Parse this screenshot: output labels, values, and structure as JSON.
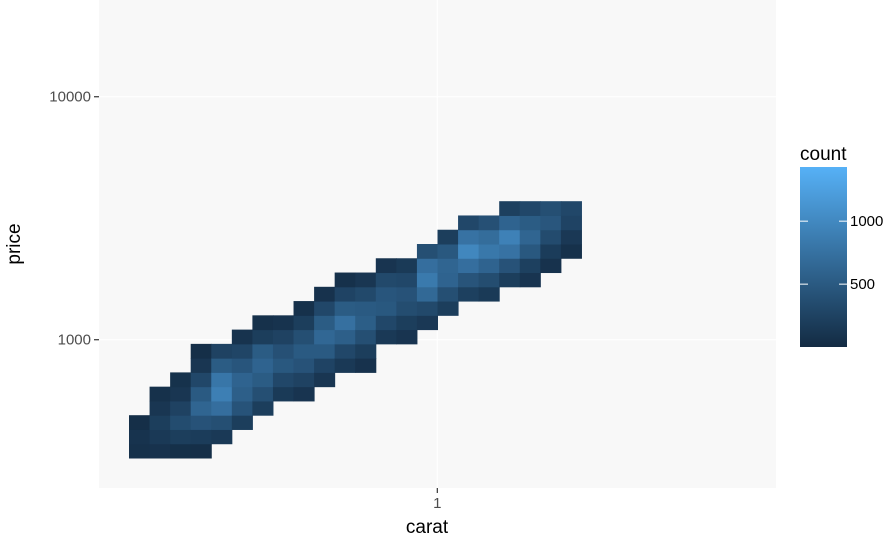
{
  "chart_data": {
    "type": "heatmap",
    "xlabel": "carat",
    "ylabel": "price",
    "x_scale": "log10",
    "y_scale": "log10",
    "x_ticks": [
      {
        "value": 1,
        "label": "1"
      }
    ],
    "y_ticks": [
      {
        "value": 1000,
        "label": "1000"
      },
      {
        "value": 10000,
        "label": "10000"
      }
    ],
    "xlim": [
      0.2,
      5.01
    ],
    "ylim": [
      326,
      18823
    ],
    "grid": true,
    "legend": {
      "title": "count",
      "position": "right",
      "range": [
        1,
        1430
      ],
      "ticks": [
        {
          "value": 500,
          "label": "500"
        },
        {
          "value": 1000,
          "label": "1000"
        }
      ],
      "colors": {
        "low": "#132B43",
        "high": "#56B1F7"
      }
    },
    "bins": {
      "x_bins": 30,
      "y_bins": 30,
      "description": "2D bin counts of diamonds carat vs price (log-log), cells listed as [x_index, y_index, count]",
      "cells": [
        [
          0,
          0,
          60
        ],
        [
          0,
          1,
          90
        ],
        [
          0,
          2,
          40
        ],
        [
          1,
          0,
          80
        ],
        [
          1,
          1,
          150
        ],
        [
          1,
          2,
          200
        ],
        [
          1,
          3,
          120
        ],
        [
          1,
          4,
          60
        ],
        [
          2,
          0,
          50
        ],
        [
          2,
          1,
          200
        ],
        [
          2,
          2,
          350
        ],
        [
          2,
          3,
          250
        ],
        [
          2,
          4,
          120
        ],
        [
          2,
          5,
          70
        ],
        [
          3,
          0,
          40
        ],
        [
          3,
          1,
          180
        ],
        [
          3,
          2,
          420
        ],
        [
          3,
          3,
          620
        ],
        [
          3,
          4,
          500
        ],
        [
          3,
          5,
          300
        ],
        [
          3,
          6,
          120
        ],
        [
          3,
          7,
          40
        ],
        [
          4,
          1,
          150
        ],
        [
          4,
          2,
          380
        ],
        [
          4,
          3,
          720
        ],
        [
          4,
          4,
          900
        ],
        [
          4,
          5,
          800
        ],
        [
          4,
          6,
          520
        ],
        [
          4,
          7,
          250
        ],
        [
          5,
          2,
          200
        ],
        [
          5,
          3,
          430
        ],
        [
          5,
          4,
          560
        ],
        [
          5,
          5,
          600
        ],
        [
          5,
          6,
          450
        ],
        [
          5,
          7,
          280
        ],
        [
          5,
          8,
          90
        ],
        [
          6,
          3,
          200
        ],
        [
          6,
          4,
          380
        ],
        [
          6,
          5,
          520
        ],
        [
          6,
          6,
          600
        ],
        [
          6,
          7,
          520
        ],
        [
          6,
          8,
          200
        ],
        [
          6,
          9,
          60
        ],
        [
          7,
          4,
          160
        ],
        [
          7,
          5,
          300
        ],
        [
          7,
          6,
          480
        ],
        [
          7,
          7,
          400
        ],
        [
          7,
          8,
          250
        ],
        [
          7,
          9,
          90
        ],
        [
          8,
          4,
          100
        ],
        [
          8,
          5,
          250
        ],
        [
          8,
          6,
          420
        ],
        [
          8,
          7,
          500
        ],
        [
          8,
          8,
          380
        ],
        [
          8,
          9,
          200
        ],
        [
          8,
          10,
          60
        ],
        [
          9,
          5,
          120
        ],
        [
          9,
          6,
          260
        ],
        [
          9,
          7,
          500
        ],
        [
          9,
          8,
          640
        ],
        [
          9,
          9,
          520
        ],
        [
          9,
          10,
          300
        ],
        [
          9,
          11,
          80
        ],
        [
          10,
          6,
          150
        ],
        [
          10,
          7,
          300
        ],
        [
          10,
          8,
          560
        ],
        [
          10,
          9,
          740
        ],
        [
          10,
          10,
          520
        ],
        [
          10,
          11,
          260
        ],
        [
          10,
          12,
          60
        ],
        [
          11,
          6,
          80
        ],
        [
          11,
          7,
          200
        ],
        [
          11,
          8,
          380
        ],
        [
          11,
          9,
          540
        ],
        [
          11,
          10,
          500
        ],
        [
          11,
          11,
          320
        ],
        [
          11,
          12,
          120
        ],
        [
          12,
          8,
          150
        ],
        [
          12,
          9,
          300
        ],
        [
          12,
          10,
          480
        ],
        [
          12,
          11,
          450
        ],
        [
          12,
          12,
          320
        ],
        [
          12,
          13,
          100
        ],
        [
          13,
          8,
          100
        ],
        [
          13,
          9,
          200
        ],
        [
          13,
          10,
          360
        ],
        [
          13,
          11,
          420
        ],
        [
          13,
          12,
          300
        ],
        [
          13,
          13,
          160
        ],
        [
          14,
          9,
          140
        ],
        [
          14,
          10,
          320
        ],
        [
          14,
          11,
          660
        ],
        [
          14,
          12,
          840
        ],
        [
          14,
          13,
          720
        ],
        [
          14,
          14,
          380
        ],
        [
          15,
          10,
          200
        ],
        [
          15,
          11,
          380
        ],
        [
          15,
          12,
          600
        ],
        [
          15,
          13,
          620
        ],
        [
          15,
          14,
          480
        ],
        [
          15,
          15,
          200
        ],
        [
          16,
          11,
          220
        ],
        [
          16,
          12,
          440
        ],
        [
          16,
          13,
          720
        ],
        [
          16,
          14,
          980
        ],
        [
          16,
          15,
          760
        ],
        [
          16,
          16,
          300
        ],
        [
          17,
          11,
          160
        ],
        [
          17,
          12,
          360
        ],
        [
          17,
          13,
          600
        ],
        [
          17,
          14,
          820
        ],
        [
          17,
          15,
          700
        ],
        [
          17,
          16,
          400
        ],
        [
          18,
          12,
          200
        ],
        [
          18,
          13,
          420
        ],
        [
          18,
          14,
          760
        ],
        [
          18,
          15,
          920
        ],
        [
          18,
          16,
          600
        ],
        [
          18,
          17,
          220
        ],
        [
          19,
          12,
          100
        ],
        [
          19,
          13,
          220
        ],
        [
          19,
          14,
          480
        ],
        [
          19,
          15,
          620
        ],
        [
          19,
          16,
          520
        ],
        [
          19,
          17,
          300
        ],
        [
          20,
          13,
          80
        ],
        [
          20,
          14,
          180
        ],
        [
          20,
          15,
          340
        ],
        [
          20,
          16,
          460
        ],
        [
          20,
          17,
          380
        ],
        [
          21,
          14,
          60
        ],
        [
          21,
          15,
          140
        ],
        [
          21,
          16,
          260
        ],
        [
          21,
          17,
          300
        ]
      ]
    }
  }
}
